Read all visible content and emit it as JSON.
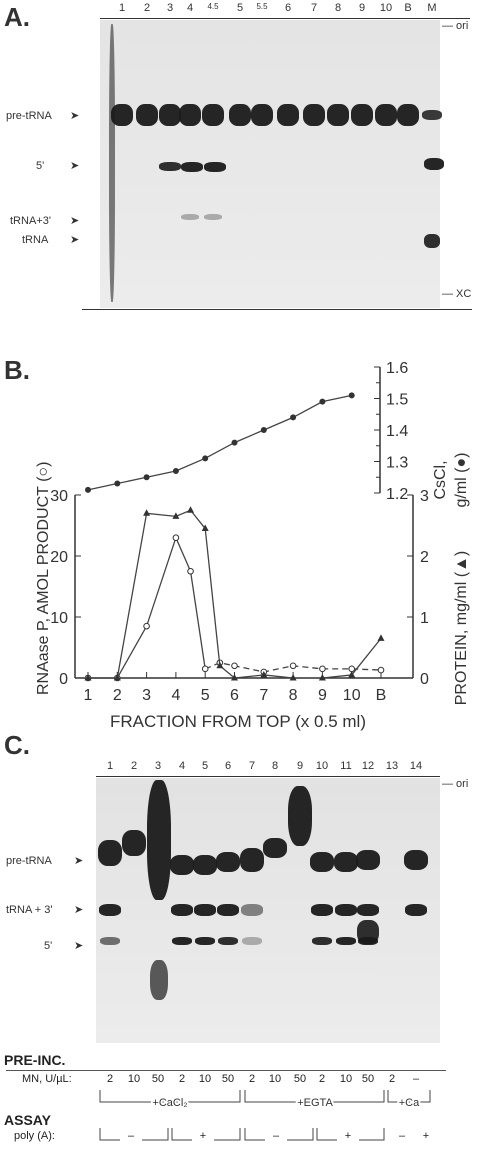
{
  "panelA": {
    "letter": "A.",
    "lanes": [
      "1",
      "2",
      "3",
      "4",
      "4.5",
      "5",
      "5.5",
      "6",
      "7",
      "8",
      "9",
      "10",
      "B",
      "M"
    ],
    "labels": {
      "ori": "— ori",
      "pre": "pre-tRNA",
      "five": "5'",
      "trna3": "tRNA+3'",
      "trna": "tRNA",
      "xc": "— XC"
    }
  },
  "panelB": {
    "letter": "B.",
    "left_axis_label": "RNAase P, AMOL PRODUCT (○)",
    "right_axis_label_1": "CsCl,",
    "right_axis_label_2": "g/ml (●)",
    "right_axis_label_3": "PROTEIN, mg/ml (▲)",
    "x_axis_label": "FRACTION FROM TOP (x 0.5 ml)"
  },
  "chart_data": {
    "type": "line",
    "x_categories": [
      "1",
      "2",
      "3",
      "4",
      "5",
      "6",
      "7",
      "8",
      "9",
      "10",
      "B"
    ],
    "left_ylim": [
      0,
      30
    ],
    "left_yticks": [
      "0",
      "10",
      "20",
      "30"
    ],
    "protein_ylim": [
      0,
      3
    ],
    "protein_yticks": [
      "0",
      "1",
      "2",
      "3"
    ],
    "cscl_ylim": [
      1.2,
      1.6
    ],
    "cscl_yticks": [
      "1.2",
      "1.3",
      "1.4",
      "1.5",
      "1.6"
    ],
    "series": [
      {
        "marker": "filled-circle",
        "axis": "cscl",
        "x": [
          1,
          2,
          3,
          4,
          5,
          6,
          7,
          8,
          9,
          10
        ],
        "values": [
          1.21,
          1.23,
          1.25,
          1.27,
          1.31,
          1.36,
          1.4,
          1.44,
          1.49,
          1.51
        ]
      },
      {
        "marker": "open-circle",
        "axis": "left",
        "x": [
          1,
          2,
          3,
          4,
          4.5,
          5,
          5.5,
          6,
          7,
          8,
          9,
          10,
          11
        ],
        "values": [
          0,
          0,
          8.5,
          23,
          17.5,
          1.5,
          2.5,
          2,
          1,
          2,
          1.5,
          1.5,
          1.3
        ]
      },
      {
        "marker": "filled-triangle",
        "axis": "protein",
        "x": [
          1,
          2,
          3,
          4,
          4.5,
          5,
          5.5,
          6,
          7,
          8,
          9,
          10,
          11
        ],
        "values": [
          0,
          0,
          2.7,
          2.65,
          2.75,
          2.45,
          0.2,
          0,
          0.05,
          0,
          0,
          0.05,
          0.65
        ]
      }
    ]
  },
  "panelC": {
    "letter": "C.",
    "lanes": [
      "1",
      "2",
      "3",
      "4",
      "5",
      "6",
      "7",
      "8",
      "9",
      "10",
      "11",
      "12",
      "13",
      "14"
    ],
    "labels": {
      "ori": "— ori",
      "pre": "pre-tRNA",
      "trna3": "tRNA + 3'",
      "five": "5'"
    },
    "pre_inc": "PRE-INC.",
    "mn_label": "MN, U/µL:",
    "mn_values": [
      "2",
      "10",
      "50",
      "2",
      "10",
      "50",
      "2",
      "10",
      "50",
      "2",
      "10",
      "50",
      "2",
      "–"
    ],
    "group_cacl2": "+CaCl₂",
    "group_egta": "+EGTA",
    "group_ca": "+Ca",
    "assay": "ASSAY",
    "polya_label": "poly (A):",
    "polya_values": [
      "–",
      "+",
      "–",
      "+",
      "–",
      "+"
    ]
  }
}
